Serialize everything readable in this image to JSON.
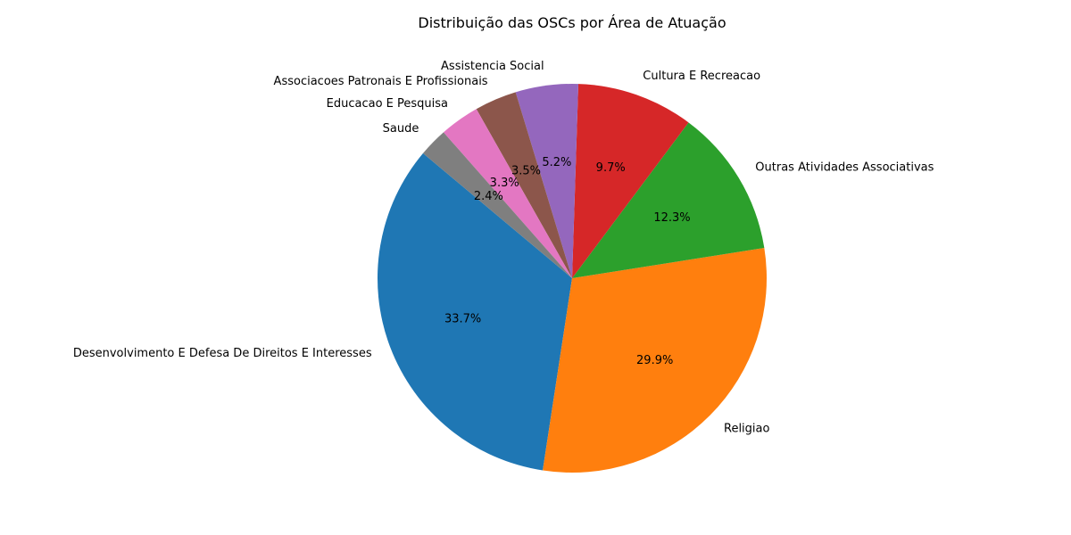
{
  "chart_data": {
    "type": "pie",
    "title": "Distribuição das OSCs por Área de Atuação",
    "start_angle_deg": 140,
    "direction": "counterclockwise",
    "slices": [
      {
        "label": "Desenvolvimento E Defesa De Direitos E Interesses",
        "percent": 33.7,
        "percent_label": "33.7%",
        "color": "#1f77b4"
      },
      {
        "label": "Religiao",
        "percent": 29.9,
        "percent_label": "29.9%",
        "color": "#ff7f0e"
      },
      {
        "label": "Outras Atividades Associativas",
        "percent": 12.3,
        "percent_label": "12.3%",
        "color": "#2ca02c"
      },
      {
        "label": "Cultura E Recreacao",
        "percent": 9.7,
        "percent_label": "9.7%",
        "color": "#d62728"
      },
      {
        "label": "Assistencia Social",
        "percent": 5.2,
        "percent_label": "5.2%",
        "color": "#9467bd"
      },
      {
        "label": "Associacoes Patronais E Profissionais",
        "percent": 3.5,
        "percent_label": "3.5%",
        "color": "#8c564b"
      },
      {
        "label": "Educacao E Pesquisa",
        "percent": 3.3,
        "percent_label": "3.3%",
        "color": "#e377c2"
      },
      {
        "label": "Saude",
        "percent": 2.4,
        "percent_label": "2.4%",
        "color": "#7f7f7f"
      }
    ]
  }
}
